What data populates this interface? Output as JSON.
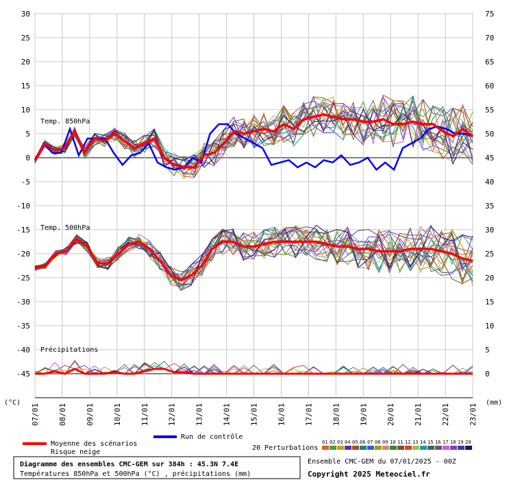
{
  "chart_data": {
    "type": "line",
    "title": "Diagramme des ensembles CMC-GEM sur 384h : 45.3N 7.4E",
    "subtitle": "Températures 850hPa et 500hPa (°C) , précipitations (mm)",
    "run_info": "Ensemble CMC-GEM du 07/01/2025 - 00Z",
    "copyright": "Copyright 2025 Meteociel.fr",
    "left_axis": {
      "unit": "(°C)",
      "ticks": [
        30,
        25,
        20,
        15,
        10,
        5,
        0,
        -5,
        -10,
        -15,
        -20,
        -25,
        -30,
        -35,
        -40,
        -45
      ]
    },
    "right_axis": {
      "unit": "(mm)",
      "ticks": [
        75,
        70,
        65,
        60,
        55,
        50,
        45,
        40,
        35,
        30,
        25,
        20,
        15,
        10,
        5,
        0
      ]
    },
    "x_labels": [
      "07/01",
      "08/01",
      "09/01",
      "10/01",
      "11/01",
      "12/01",
      "13/01",
      "14/01",
      "15/01",
      "16/01",
      "17/01",
      "18/01",
      "19/01",
      "20/01",
      "21/01",
      "22/01",
      "23/01"
    ],
    "panels": {
      "t850": "Temp. 850hPa",
      "t500": "Temp. 500hPa",
      "precip": "Précipitations"
    },
    "legend": {
      "mean": "Moyenne des scénarios",
      "snow": "Risque neige",
      "control": "Run de contrôle",
      "perturbations": "20 Perturbations",
      "members": [
        "01",
        "02",
        "03",
        "04",
        "05",
        "06",
        "07",
        "08",
        "09",
        "10",
        "11",
        "12",
        "13",
        "14",
        "15",
        "16",
        "17",
        "18",
        "19",
        "20"
      ]
    },
    "member_colors": [
      "#e06020",
      "#40a040",
      "#c8a000",
      "#6030a0",
      "#a05020",
      "#208080",
      "#3060d0",
      "#a0a000",
      "#d09060",
      "#408040",
      "#805020",
      "#d04040",
      "#a0c040",
      "#10a0a0",
      "#506060",
      "#606060",
      "#c060e0",
      "#8040c0",
      "#404080",
      "#201060"
    ],
    "mean_color": "#ff0000",
    "control_color": "#0000ff",
    "series_850": {
      "mean": [
        -0.5,
        3,
        1.5,
        2,
        5.5,
        1,
        4,
        3.5,
        5,
        3.5,
        2,
        3,
        4,
        0,
        -1.5,
        -2,
        -2,
        0.5,
        1,
        3,
        5.5,
        5,
        5.5,
        6,
        5.5,
        7,
        6,
        8,
        8.5,
        9,
        8.5,
        8,
        8,
        7.5,
        7.5,
        8,
        7,
        7,
        7.5,
        7,
        7,
        5.5,
        4.5,
        6,
        4.5
      ],
      "control": [
        -0.5,
        3,
        1,
        1,
        6,
        0.5,
        4,
        4,
        4,
        1,
        -1.5,
        0.5,
        1,
        3,
        -1,
        -2,
        -2.5,
        -2,
        0,
        -1,
        5,
        7,
        7,
        5,
        4,
        3,
        2,
        -1.5,
        -1,
        -0.5,
        -2,
        -1,
        -2,
        -0.5,
        -1,
        0.5,
        -1.5,
        -1,
        0,
        -2.5,
        -1,
        -2.5,
        2,
        3,
        4,
        6,
        6.5,
        6,
        5,
        5,
        4.5
      ]
    },
    "series_500": {
      "mean": [
        -23,
        -22.5,
        -20,
        -19.5,
        -17,
        -18.5,
        -22,
        -22,
        -20,
        -18,
        -17.5,
        -19,
        -21.5,
        -24.5,
        -25.5,
        -24.5,
        -22.5,
        -19,
        -17.5,
        -17.5,
        -18.5,
        -18.5,
        -18,
        -17.5,
        -17.5,
        -17.5,
        -17.5,
        -17.5,
        -18,
        -18.5,
        -18.5,
        -19,
        -19,
        -19.5,
        -19.5,
        -19.5,
        -19,
        -19,
        -19,
        -19.5,
        -20,
        -21,
        -21.5
      ],
      "control": [
        -23,
        -22.5,
        -20,
        -19.5,
        -17,
        -18.5,
        -22,
        -22,
        -20,
        -18,
        -17.5,
        -19,
        -21.5,
        -24.5,
        -25.5,
        -24.5,
        -22.5,
        -19,
        -17.5,
        -17.5,
        -18.5,
        -18.5,
        -18,
        -17.5,
        -17.5,
        -17.5,
        -17.5,
        -17.5,
        -18,
        -18.5,
        -18.5,
        -19,
        -19,
        -19.5,
        -19.5,
        -19.5,
        -19,
        -19,
        -19,
        -19.5,
        -20,
        -21,
        -21.5
      ]
    },
    "series_precip": {
      "mean": [
        0,
        0,
        0.5,
        0,
        1,
        0,
        0,
        0,
        0.3,
        0,
        0,
        0.5,
        1,
        1,
        0.3,
        0.3,
        0,
        0,
        0,
        0,
        0,
        0,
        0,
        0,
        0,
        0,
        0,
        0,
        0,
        0,
        0,
        0,
        0,
        0,
        0,
        0,
        0,
        0,
        0,
        0,
        0,
        0,
        0,
        0,
        0
      ]
    }
  }
}
